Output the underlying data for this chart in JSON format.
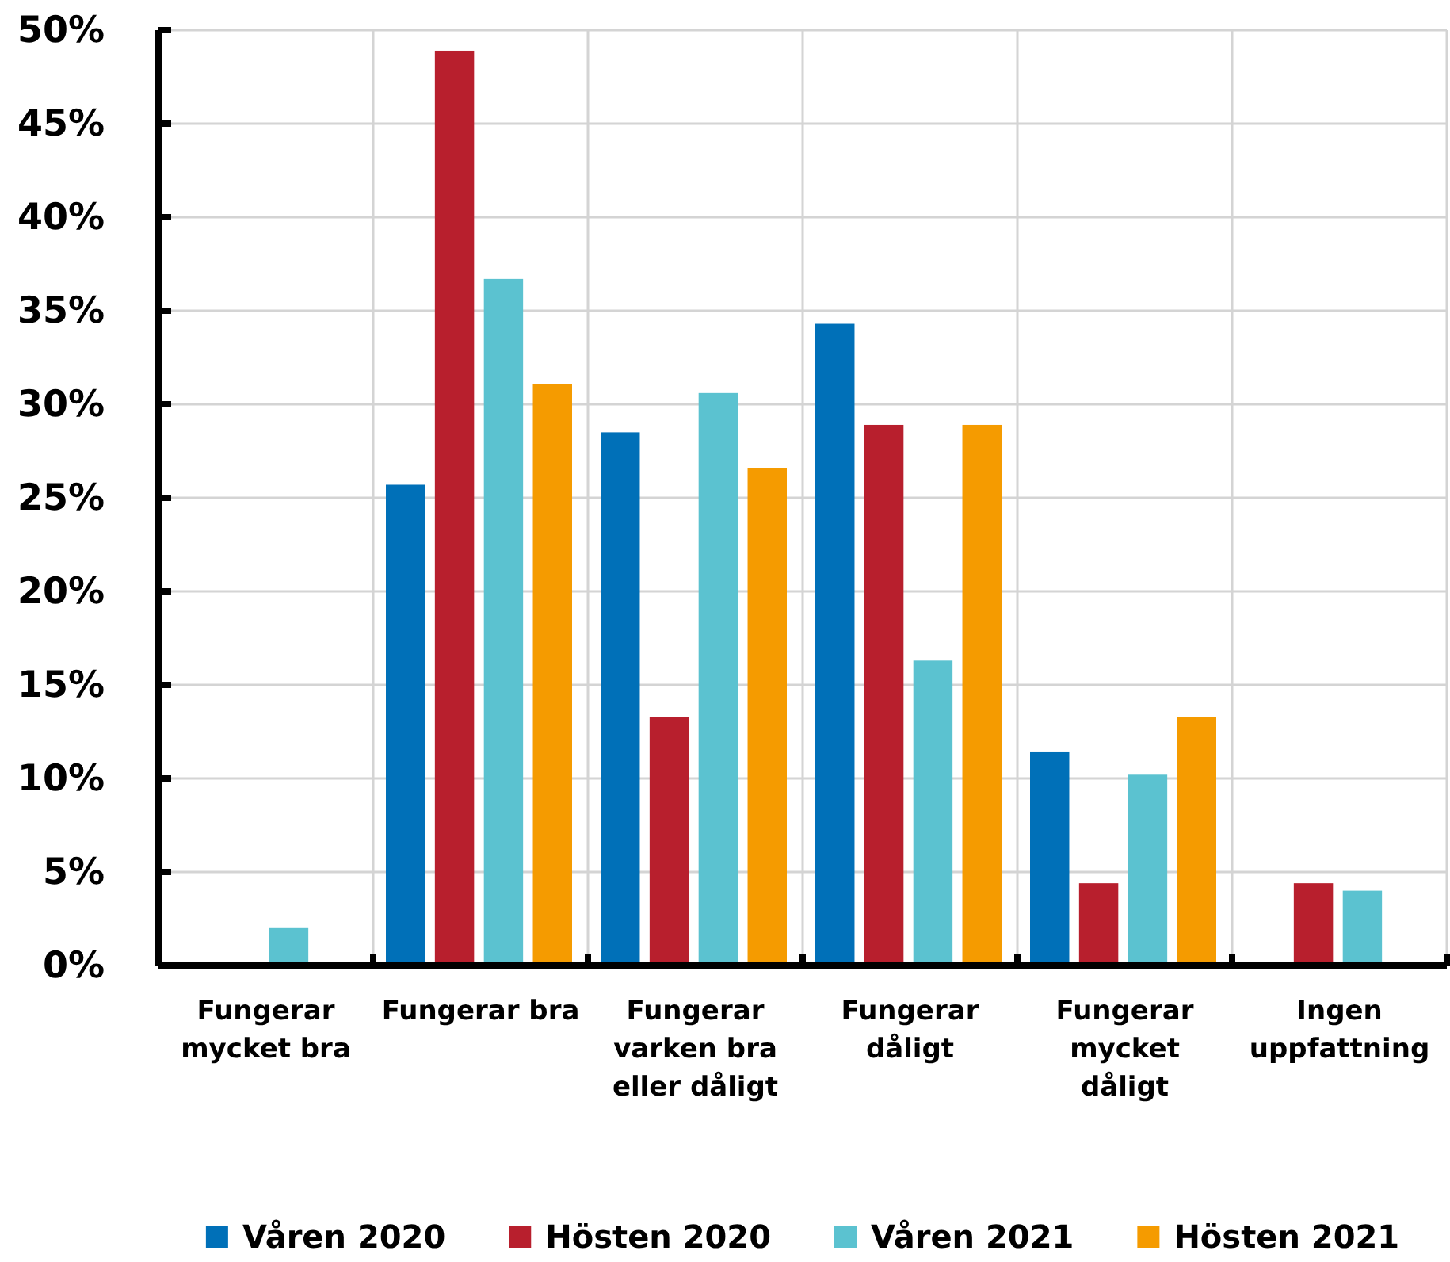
{
  "chart_data": {
    "type": "bar",
    "categories": [
      "Fungerar mycket bra",
      "Fungerar bra",
      "Fungerar varken bra eller dåligt",
      "Fungerar dåligt",
      "Fungerar mycket dåligt",
      "Ingen uppfattning"
    ],
    "series": [
      {
        "name": "Våren 2020",
        "color": "#0070b8",
        "values": [
          null,
          25.7,
          28.5,
          34.3,
          11.4,
          null
        ]
      },
      {
        "name": "Hösten 2020",
        "color": "#b81f2d",
        "values": [
          null,
          48.9,
          13.3,
          28.9,
          4.4,
          4.4
        ]
      },
      {
        "name": "Våren 2021",
        "color": "#5bc2d0",
        "values": [
          2.0,
          36.7,
          30.6,
          16.3,
          10.2,
          4.0
        ]
      },
      {
        "name": "Hösten 2021",
        "color": "#f59b00",
        "values": [
          null,
          31.1,
          26.6,
          28.9,
          13.3,
          null
        ]
      }
    ],
    "ylim": [
      0,
      50
    ],
    "yticks": [
      {
        "value": 0,
        "label": "0%"
      },
      {
        "value": 5,
        "label": "5%"
      },
      {
        "value": 10,
        "label": "10%"
      },
      {
        "value": 15,
        "label": "15%"
      },
      {
        "value": 20,
        "label": "20%"
      },
      {
        "value": 25,
        "label": "25%"
      },
      {
        "value": 30,
        "label": "30%"
      },
      {
        "value": 35,
        "label": "35%"
      },
      {
        "value": 40,
        "label": "40%"
      },
      {
        "value": 45,
        "label": "45%"
      },
      {
        "value": 50,
        "label": "50%"
      }
    ],
    "grid": true,
    "legend": "bottom"
  }
}
